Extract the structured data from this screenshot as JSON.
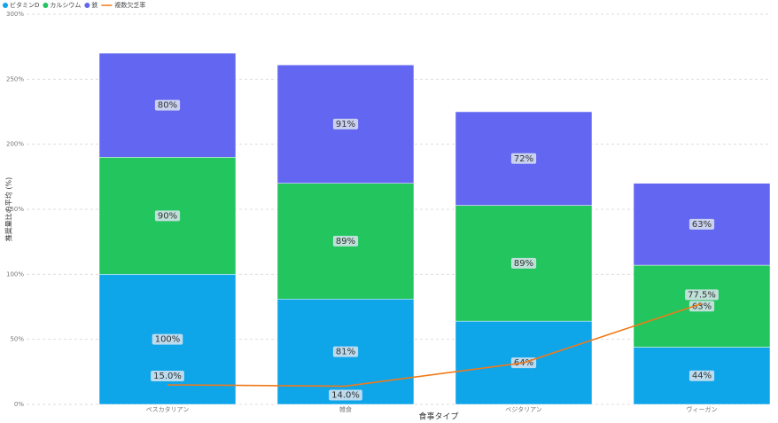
{
  "chart_data": {
    "type": "stacked-bar-line",
    "x_label": "食事タイプ",
    "y_label": "推奨量比の平均 (%)",
    "categories": [
      "ペスカタリアン",
      "雑食",
      "ベジタリアン",
      "ヴィーガン"
    ],
    "series": [
      {
        "name": "ビタミンD",
        "color": "#0ea5e9",
        "values": [
          100,
          81,
          64,
          44
        ],
        "value_labels": [
          "100%",
          "81%",
          "64%",
          "44%"
        ]
      },
      {
        "name": "カルシウム",
        "color": "#22c55e",
        "values": [
          90,
          89,
          89,
          63
        ],
        "value_labels": [
          "90%",
          "89%",
          "89%",
          "63%"
        ]
      },
      {
        "name": "鉄",
        "color": "#6366f1",
        "values": [
          80,
          91,
          72,
          63
        ],
        "value_labels": [
          "80%",
          "91%",
          "72%",
          "63%"
        ]
      },
      {
        "name": "複数欠乏率",
        "color": "#f07a1a",
        "kind": "line",
        "values": [
          15.0,
          14.0,
          32,
          77.5
        ],
        "value_labels": [
          "15.0%",
          "14.0%",
          null,
          "77.5%"
        ]
      }
    ],
    "ylim": [
      0,
      300
    ],
    "yticks": [
      {
        "value": 0,
        "label": "0%"
      },
      {
        "value": 50,
        "label": "50%"
      },
      {
        "value": 100,
        "label": "100%"
      },
      {
        "value": 150,
        "label": "150%"
      },
      {
        "value": 200,
        "label": "200%"
      },
      {
        "value": 250,
        "label": "250%"
      },
      {
        "value": 300,
        "label": "300%"
      }
    ],
    "grid": true
  }
}
